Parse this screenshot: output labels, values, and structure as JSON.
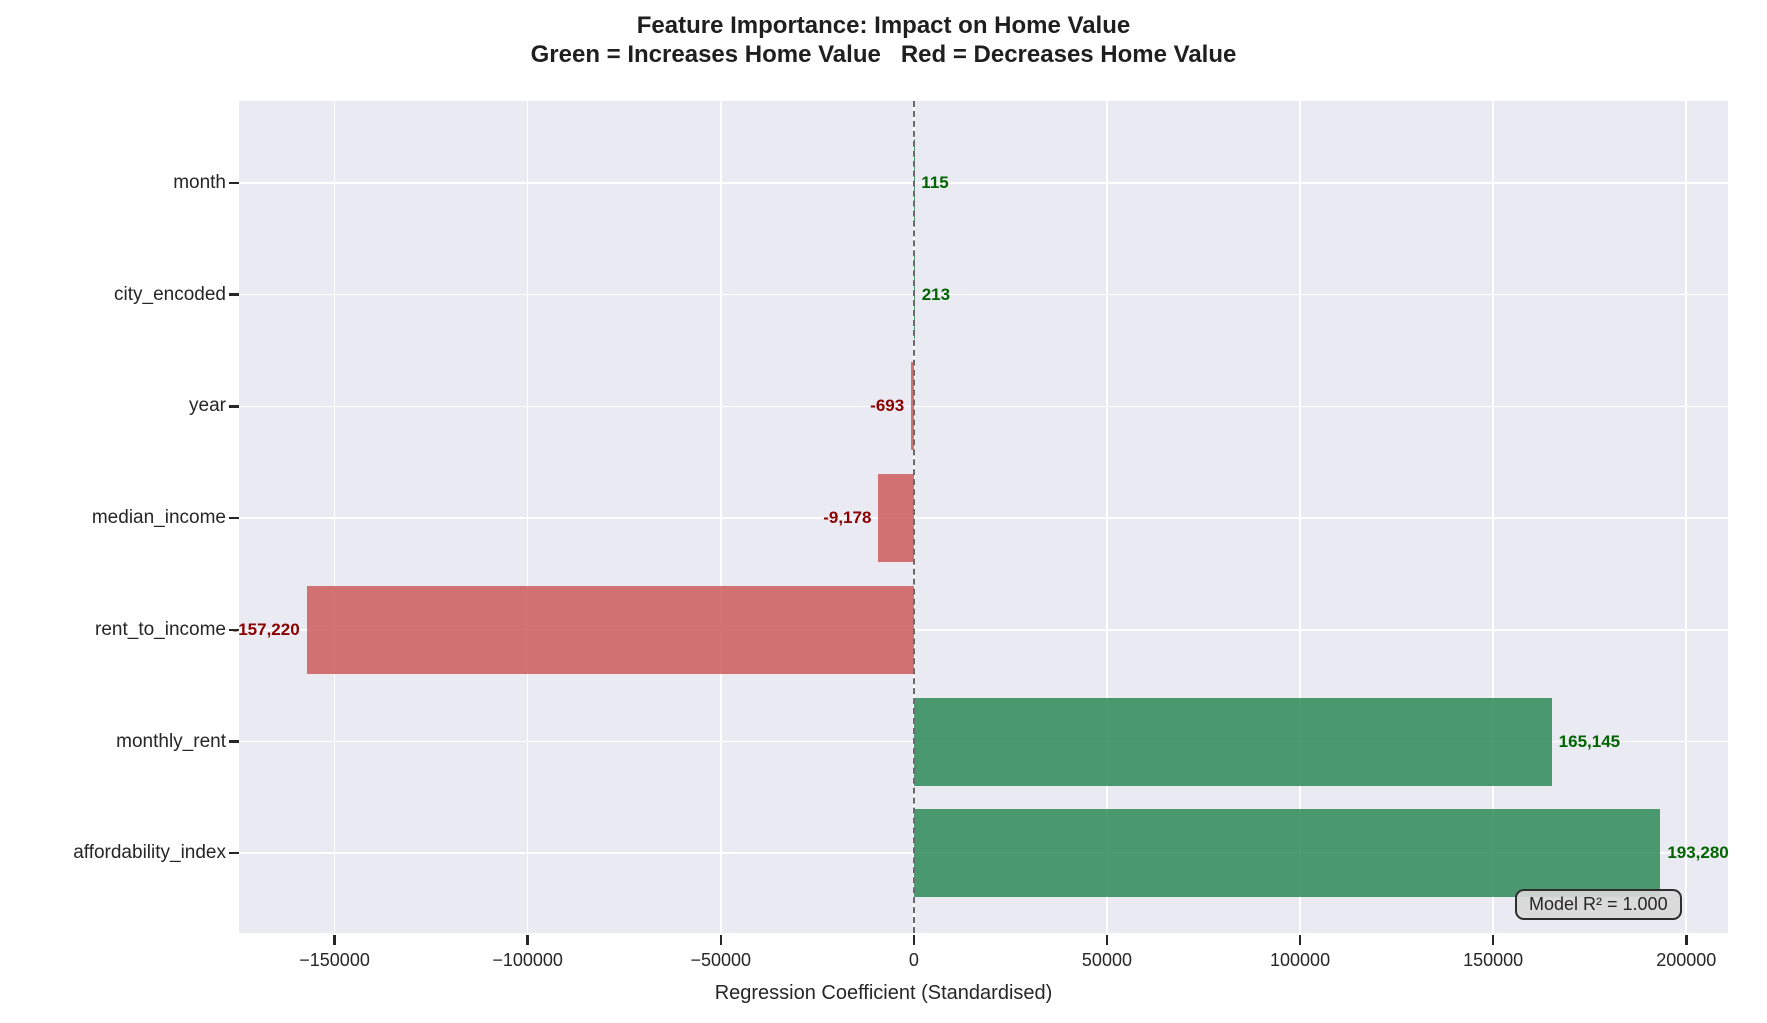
{
  "figure": {
    "title_line1": "Feature Importance: Impact on Home Value",
    "title_line2": "Green = Increases Home Value   Red = Decreases Home Value",
    "xlabel": "Regression Coefficient (Standardised)",
    "annotation": "Model R² = 1.000"
  },
  "chart_data": {
    "type": "bar",
    "orientation": "horizontal",
    "title": "Feature Importance: Impact on Home Value",
    "subtitle": "Green = Increases Home Value   Red = Decreases Home Value",
    "xlabel": "Regression Coefficient (Standardised)",
    "ylabel": "",
    "categories": [
      "month",
      "city_encoded",
      "year",
      "median_income",
      "rent_to_income",
      "monthly_rent",
      "affordability_index"
    ],
    "values": [
      115,
      213,
      -693,
      -9178,
      -157220,
      165145,
      193280
    ],
    "value_labels": [
      "115",
      "213",
      "-693",
      "-9,178",
      "-157,220",
      "165,145",
      "193,280"
    ],
    "xlim": [
      -174745,
      210805
    ],
    "x_ticks": [
      -150000,
      -100000,
      -50000,
      0,
      50000,
      100000,
      150000,
      200000
    ],
    "x_tick_labels": [
      "−150000",
      "−100000",
      "−50000",
      "0",
      "50000",
      "100000",
      "150000",
      "200000"
    ],
    "grid": true,
    "legend": "none",
    "zero_reference_line": 0,
    "annotation": "Model R² = 1.000",
    "colors": {
      "positive_bar": "rgba(46,139,87,0.85)",
      "negative_bar": "rgba(205,92,92,0.85)",
      "positive_label": "#006400",
      "negative_label": "#8b0000",
      "plot_background": "#eaeaf2",
      "gridline": "#ffffff",
      "zero_line": "#6a6a6a",
      "text": "#262626"
    }
  }
}
